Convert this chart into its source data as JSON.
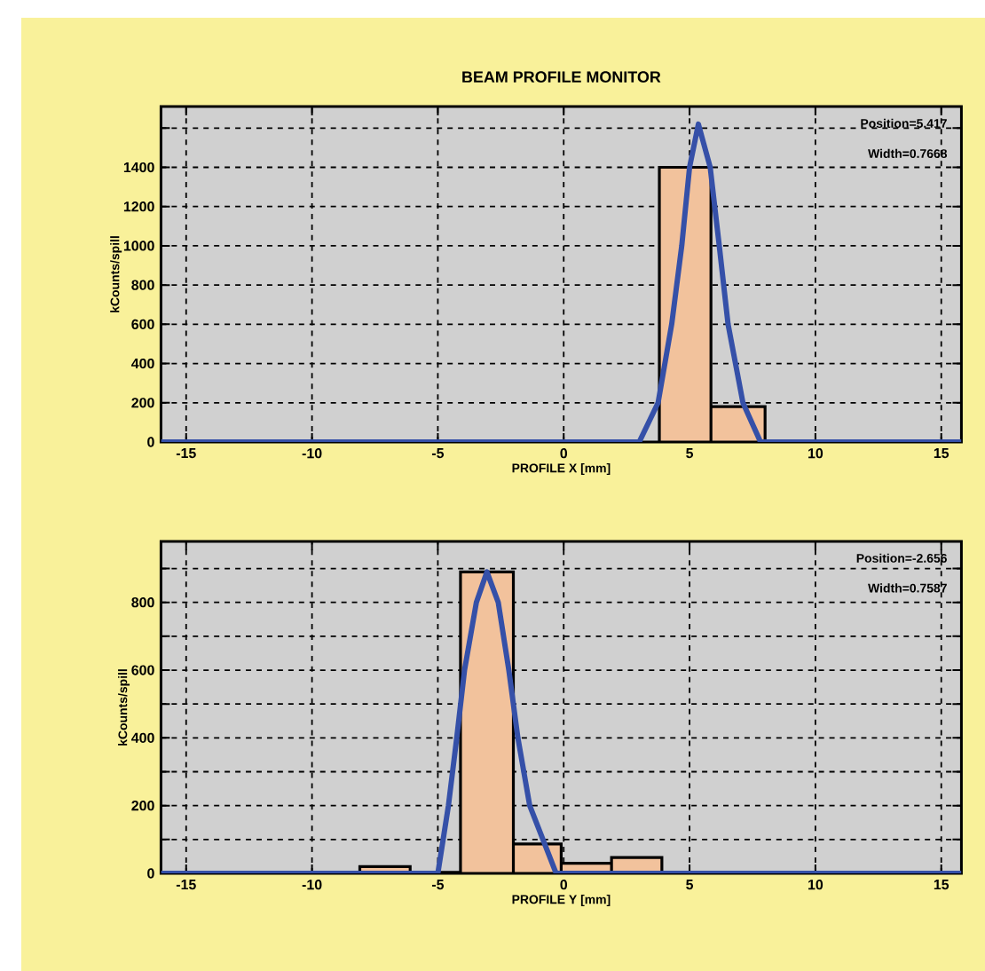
{
  "chart_data": [
    {
      "type": "histogram",
      "title": "BEAM PROFILE MONITOR",
      "xlabel": "PROFILE X [mm]",
      "ylabel": "kCounts/spill",
      "xlim": [
        -16,
        15.8
      ],
      "ylim": [
        0,
        1710
      ],
      "xticks": [
        -15,
        -10,
        -5,
        0,
        5,
        10,
        15
      ],
      "yticks": [
        0,
        200,
        400,
        600,
        800,
        1000,
        1200,
        1400,
        {
          "value": 1600,
          "label": null
        }
      ],
      "grid": true,
      "marker": "none",
      "annotations": [
        "Position=5.417",
        "Width=0.7668"
      ],
      "series": [
        {
          "type": "histogram",
          "color": "#f2c29c",
          "bins": [
            3.8,
            5.85,
            8.0
          ],
          "values": [
            1400,
            180
          ]
        },
        {
          "type": "line",
          "color": "#3550a8",
          "x": [
            -16,
            3.0,
            3.75,
            4.29,
            4.69,
            5.0,
            5.35,
            5.82,
            6.18,
            6.53,
            7.12,
            7.82,
            15.8
          ],
          "values": [
            0,
            0,
            200,
            600,
            1000,
            1400,
            1620,
            1400,
            1000,
            600,
            200,
            0,
            0
          ]
        }
      ]
    },
    {
      "type": "histogram",
      "xlabel": "PROFILE Y [mm]",
      "ylabel": "kCounts/spill",
      "xlim": [
        -16,
        15.8
      ],
      "ylim": [
        0,
        980
      ],
      "xticks": [
        -15,
        -10,
        -5,
        0,
        5,
        10,
        15
      ],
      "yticks": [
        0,
        {
          "value": 100,
          "label": null
        },
        200,
        {
          "value": 300,
          "label": null
        },
        400,
        {
          "value": 500,
          "label": null
        },
        600,
        {
          "value": 700,
          "label": null
        },
        800,
        {
          "value": 900,
          "label": null
        }
      ],
      "grid": true,
      "marker": "none",
      "annotations": [
        "Position=-2.656",
        "Width=0.7587"
      ],
      "series": [
        {
          "type": "histogram",
          "color": "#f2c29c",
          "bins": [
            -8.1,
            -6.1,
            -4.1,
            -2.0,
            -0.1,
            1.9,
            3.9
          ],
          "values": [
            20,
            3,
            890,
            87,
            30,
            47
          ]
        },
        {
          "type": "line",
          "color": "#3550a8",
          "x": [
            -16,
            -5.0,
            -4.58,
            -4.25,
            -3.94,
            -3.47,
            -3.05,
            -2.6,
            -2.18,
            -1.82,
            -1.35,
            -0.3,
            15.8
          ],
          "values": [
            0,
            0,
            200,
            400,
            600,
            800,
            890,
            800,
            600,
            400,
            200,
            0,
            0
          ]
        }
      ]
    }
  ]
}
